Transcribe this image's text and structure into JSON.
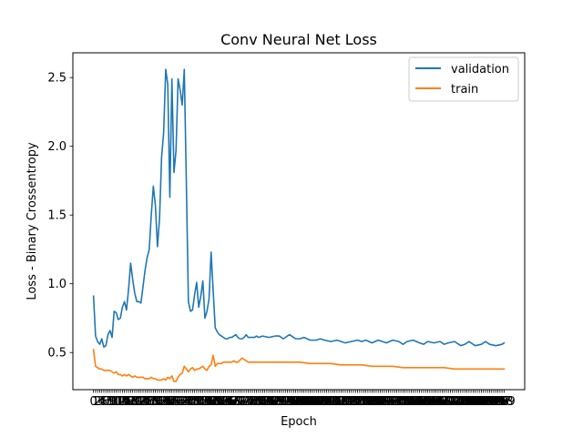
{
  "chart_data": {
    "type": "line",
    "title": "Conv Neural Net Loss",
    "xlabel": "Epoch",
    "ylabel": "Loss - Binary Crossentropy",
    "xlim": [
      -10,
      209
    ],
    "ylim": [
      0.23,
      2.68
    ],
    "y_ticks": [
      0.5,
      1.0,
      1.5,
      2.0,
      2.5
    ],
    "y_tick_labels": [
      "0.5",
      "1.0",
      "1.5",
      "2.0",
      "2.5"
    ],
    "x_ticks": [
      0,
      1,
      2,
      3,
      4,
      5,
      6,
      7,
      8,
      9,
      10,
      11,
      12,
      13,
      14,
      15,
      16,
      17,
      18,
      19,
      20,
      21,
      22,
      23,
      24,
      25,
      26,
      27,
      28,
      29,
      30,
      31,
      32,
      33,
      34,
      35,
      36,
      37,
      38,
      39,
      40,
      41,
      42,
      43,
      44,
      45,
      46,
      47,
      48,
      49,
      50,
      51,
      52,
      53,
      54,
      55,
      56,
      57,
      58,
      59,
      60,
      61,
      62,
      63,
      64,
      65,
      66,
      67,
      68,
      69,
      70,
      71,
      72,
      73,
      74,
      75,
      76,
      77,
      78,
      79,
      80,
      81,
      82,
      83,
      84,
      85,
      86,
      87,
      88,
      89,
      90,
      91,
      92,
      93,
      94,
      95,
      96,
      97,
      98,
      99,
      100,
      101,
      102,
      103,
      104,
      105,
      106,
      107,
      108,
      109,
      110,
      111,
      112,
      113,
      114,
      115,
      116,
      117,
      118,
      119,
      120,
      121,
      122,
      123,
      124,
      125,
      126,
      127,
      128,
      129,
      130,
      131,
      132,
      133,
      134,
      135,
      136,
      137,
      138,
      139,
      140,
      141,
      142,
      143,
      144,
      145,
      146,
      147,
      148,
      149,
      150,
      151,
      152,
      153,
      154,
      155,
      156,
      157,
      158,
      159,
      160,
      161,
      162,
      163,
      164,
      165,
      166,
      167,
      168,
      169,
      170,
      171,
      172,
      173,
      174,
      175,
      176,
      177,
      178,
      179,
      180,
      181,
      182,
      183,
      184,
      185,
      186,
      187,
      188,
      189,
      190,
      191,
      192,
      193,
      194,
      195,
      196,
      197,
      198,
      199
    ],
    "legend": {
      "position": "upper right",
      "entries": [
        "validation",
        "train"
      ]
    },
    "colors": {
      "validation": "#1f77b4",
      "train": "#ff7f0e"
    },
    "series": [
      {
        "name": "validation",
        "x": [
          0,
          1,
          2,
          3,
          4,
          5,
          6,
          7,
          8,
          9,
          10,
          11,
          12,
          13,
          14,
          15,
          16,
          17,
          18,
          19,
          20,
          21,
          22,
          23,
          24,
          25,
          26,
          27,
          28,
          29,
          30,
          31,
          32,
          33,
          34,
          35,
          36,
          37,
          38,
          39,
          40,
          41,
          42,
          43,
          44,
          45,
          46,
          47,
          48,
          49,
          50,
          51,
          52,
          53,
          54,
          55,
          56,
          57,
          58,
          59,
          60,
          61,
          62,
          63,
          64,
          65,
          66,
          67,
          68,
          69,
          70,
          71,
          72,
          73,
          74,
          75,
          76,
          77,
          78,
          79,
          80,
          82,
          85,
          88,
          90,
          92,
          95,
          98,
          100,
          102,
          105,
          108,
          110,
          112,
          115,
          118,
          120,
          122,
          125,
          128,
          130,
          132,
          135,
          138,
          140,
          142,
          145,
          148,
          150,
          152,
          155,
          158,
          160,
          162,
          165,
          168,
          170,
          172,
          175,
          178,
          180,
          182,
          185,
          188,
          190,
          192,
          195,
          198,
          199
        ],
        "values": [
          0.91,
          0.62,
          0.58,
          0.56,
          0.6,
          0.54,
          0.55,
          0.63,
          0.66,
          0.61,
          0.8,
          0.79,
          0.74,
          0.75,
          0.83,
          0.87,
          0.81,
          0.96,
          1.15,
          1.03,
          0.93,
          0.87,
          0.87,
          0.86,
          0.98,
          1.1,
          1.19,
          1.25,
          1.5,
          1.71,
          1.57,
          1.27,
          1.47,
          1.92,
          2.1,
          2.56,
          2.45,
          1.63,
          2.49,
          1.81,
          1.97,
          2.49,
          2.41,
          2.3,
          2.56,
          1.73,
          0.87,
          0.8,
          0.81,
          0.92,
          1.01,
          0.83,
          0.91,
          1.02,
          0.75,
          0.8,
          0.89,
          1.23,
          0.95,
          0.68,
          0.65,
          0.63,
          0.62,
          0.61,
          0.6,
          0.6,
          0.61,
          0.61,
          0.62,
          0.63,
          0.61,
          0.6,
          0.6,
          0.61,
          0.63,
          0.61,
          0.61,
          0.61,
          0.61,
          0.62,
          0.61,
          0.62,
          0.61,
          0.62,
          0.62,
          0.6,
          0.63,
          0.6,
          0.6,
          0.61,
          0.59,
          0.59,
          0.6,
          0.59,
          0.58,
          0.59,
          0.58,
          0.57,
          0.58,
          0.59,
          0.58,
          0.59,
          0.57,
          0.59,
          0.58,
          0.57,
          0.59,
          0.58,
          0.56,
          0.58,
          0.59,
          0.57,
          0.56,
          0.58,
          0.57,
          0.58,
          0.56,
          0.57,
          0.58,
          0.55,
          0.56,
          0.58,
          0.55,
          0.56,
          0.58,
          0.56,
          0.55,
          0.56,
          0.57
        ]
      },
      {
        "name": "train",
        "x": [
          0,
          1,
          2,
          3,
          4,
          5,
          6,
          7,
          8,
          9,
          10,
          11,
          12,
          13,
          14,
          15,
          16,
          17,
          18,
          19,
          20,
          21,
          22,
          23,
          24,
          25,
          26,
          27,
          28,
          29,
          30,
          31,
          32,
          33,
          34,
          35,
          36,
          37,
          38,
          39,
          40,
          41,
          42,
          43,
          44,
          45,
          46,
          47,
          48,
          49,
          50,
          51,
          52,
          53,
          54,
          55,
          56,
          57,
          58,
          59,
          60,
          61,
          62,
          63,
          64,
          65,
          66,
          67,
          68,
          69,
          70,
          72,
          75,
          78,
          80,
          85,
          90,
          95,
          100,
          105,
          110,
          115,
          120,
          125,
          130,
          135,
          140,
          145,
          150,
          155,
          160,
          165,
          170,
          175,
          180,
          185,
          190,
          195,
          199
        ],
        "values": [
          0.52,
          0.4,
          0.39,
          0.38,
          0.38,
          0.37,
          0.37,
          0.37,
          0.37,
          0.36,
          0.35,
          0.36,
          0.34,
          0.34,
          0.33,
          0.34,
          0.33,
          0.34,
          0.33,
          0.32,
          0.33,
          0.32,
          0.32,
          0.32,
          0.32,
          0.31,
          0.31,
          0.31,
          0.32,
          0.31,
          0.31,
          0.3,
          0.3,
          0.3,
          0.31,
          0.3,
          0.32,
          0.31,
          0.33,
          0.29,
          0.29,
          0.32,
          0.34,
          0.35,
          0.4,
          0.38,
          0.36,
          0.38,
          0.39,
          0.37,
          0.38,
          0.38,
          0.39,
          0.4,
          0.38,
          0.37,
          0.4,
          0.41,
          0.48,
          0.4,
          0.42,
          0.42,
          0.42,
          0.43,
          0.43,
          0.43,
          0.43,
          0.43,
          0.44,
          0.43,
          0.43,
          0.46,
          0.43,
          0.43,
          0.43,
          0.43,
          0.43,
          0.43,
          0.43,
          0.42,
          0.42,
          0.42,
          0.41,
          0.41,
          0.41,
          0.4,
          0.4,
          0.4,
          0.39,
          0.39,
          0.39,
          0.39,
          0.39,
          0.38,
          0.38,
          0.38,
          0.38,
          0.38,
          0.38
        ]
      }
    ]
  }
}
